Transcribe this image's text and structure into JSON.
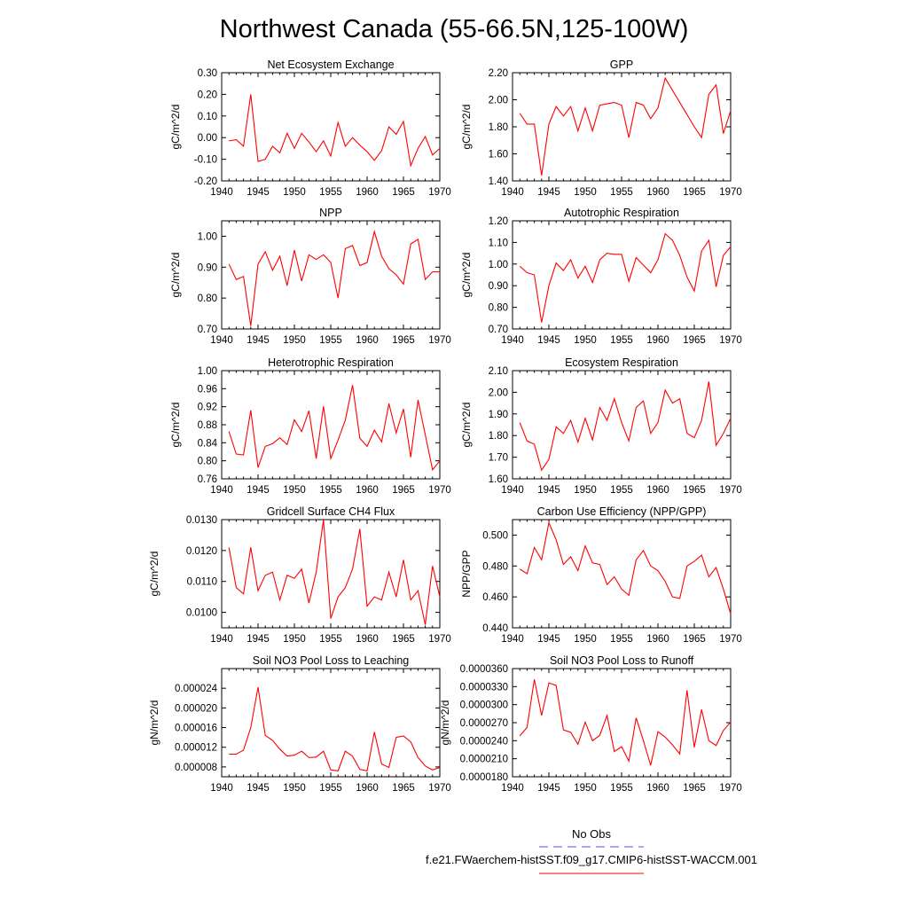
{
  "figure_title": "Northwest Canada (55-66.5N,125-100W)",
  "colors": {
    "model_line": "#ff0000",
    "obs_line": "#5555dd",
    "axes": "#000000"
  },
  "legend": {
    "obs_label": "No Obs",
    "model_label": "f.e21.FWaerchem-histSST.f09_g17.CMIP6-histSST-WACCM.001"
  },
  "chart_data": [
    {
      "type": "line",
      "title": "Net Ecosystem Exchange",
      "xlabel": "",
      "ylabel": "gC/m^2/d",
      "xlim": [
        1940,
        1970
      ],
      "ylim": [
        -0.2,
        0.3
      ],
      "xticks": [
        1940,
        1945,
        1950,
        1955,
        1960,
        1965,
        1970
      ],
      "xtick_labels": [
        "1940",
        "1945",
        "1950",
        "1955",
        "1960",
        "1965",
        "1970"
      ],
      "yticks": [
        -0.2,
        -0.1,
        0.0,
        0.1,
        0.2,
        0.3
      ],
      "ytick_labels": [
        "-0.20",
        "-0.10",
        "0.00",
        "0.10",
        "0.20",
        "0.30"
      ],
      "x": [
        1941,
        1942,
        1943,
        1944,
        1945,
        1946,
        1947,
        1948,
        1949,
        1950,
        1951,
        1952,
        1953,
        1954,
        1955,
        1956,
        1957,
        1958,
        1959,
        1960,
        1961,
        1962,
        1963,
        1964,
        1965,
        1966,
        1967,
        1968,
        1969,
        1970
      ],
      "series": [
        {
          "values": [
            -0.015,
            -0.01,
            -0.04,
            0.2,
            -0.11,
            -0.1,
            -0.04,
            -0.07,
            0.02,
            -0.05,
            0.02,
            -0.02,
            -0.065,
            -0.015,
            -0.085,
            0.07,
            -0.04,
            0.0,
            -0.035,
            -0.065,
            -0.105,
            -0.06,
            0.05,
            0.015,
            0.075,
            -0.13,
            -0.05,
            0.005,
            -0.08,
            -0.05
          ]
        }
      ],
      "grid": false
    },
    {
      "type": "line",
      "title": "GPP",
      "xlabel": "",
      "ylabel": "gC/m^2/d",
      "xlim": [
        1940,
        1970
      ],
      "ylim": [
        1.4,
        2.2
      ],
      "xticks": [
        1940,
        1945,
        1950,
        1955,
        1960,
        1965,
        1970
      ],
      "xtick_labels": [
        "1940",
        "1945",
        "1950",
        "1955",
        "1960",
        "1965",
        "1970"
      ],
      "yticks": [
        1.4,
        1.6,
        1.8,
        2.0,
        2.2
      ],
      "ytick_labels": [
        "1.40",
        "1.60",
        "1.80",
        "2.00",
        "2.20"
      ],
      "x": [
        1941,
        1942,
        1943,
        1944,
        1945,
        1946,
        1947,
        1948,
        1949,
        1950,
        1951,
        1952,
        1953,
        1954,
        1955,
        1956,
        1957,
        1958,
        1959,
        1960,
        1961,
        1962,
        1963,
        1964,
        1965,
        1966,
        1967,
        1968,
        1969,
        1970
      ],
      "series": [
        {
          "values": [
            1.9,
            1.82,
            1.82,
            1.44,
            1.82,
            1.95,
            1.88,
            1.95,
            1.77,
            1.94,
            1.77,
            1.96,
            1.97,
            1.98,
            1.96,
            1.72,
            1.98,
            1.96,
            1.86,
            1.94,
            2.16,
            2.07,
            1.98,
            1.89,
            1.8,
            1.72,
            2.04,
            2.11,
            1.75,
            1.92
          ]
        }
      ],
      "grid": false
    },
    {
      "type": "line",
      "title": "NPP",
      "xlabel": "",
      "ylabel": "gC/m^2/d",
      "xlim": [
        1940,
        1970
      ],
      "ylim": [
        0.7,
        1.05
      ],
      "xticks": [
        1940,
        1945,
        1950,
        1955,
        1960,
        1965,
        1970
      ],
      "xtick_labels": [
        "1940",
        "1945",
        "1950",
        "1955",
        "1960",
        "1965",
        "1970"
      ],
      "yticks": [
        0.7,
        0.8,
        0.9,
        1.0
      ],
      "ytick_labels": [
        "0.70",
        "0.80",
        "0.90",
        "1.00"
      ],
      "x": [
        1941,
        1942,
        1943,
        1944,
        1945,
        1946,
        1947,
        1948,
        1949,
        1950,
        1951,
        1952,
        1953,
        1954,
        1955,
        1956,
        1957,
        1958,
        1959,
        1960,
        1961,
        1962,
        1963,
        1964,
        1965,
        1966,
        1967,
        1968,
        1969,
        1970
      ],
      "series": [
        {
          "values": [
            0.91,
            0.86,
            0.87,
            0.71,
            0.91,
            0.95,
            0.89,
            0.935,
            0.84,
            0.955,
            0.855,
            0.94,
            0.925,
            0.94,
            0.915,
            0.8,
            0.96,
            0.97,
            0.905,
            0.915,
            1.015,
            0.935,
            0.895,
            0.875,
            0.845,
            0.975,
            0.99,
            0.86,
            0.885,
            0.885
          ]
        }
      ],
      "grid": false
    },
    {
      "type": "line",
      "title": "Autotrophic Respiration",
      "xlabel": "",
      "ylabel": "gC/m^2/d",
      "xlim": [
        1940,
        1970
      ],
      "ylim": [
        0.7,
        1.2
      ],
      "xticks": [
        1940,
        1945,
        1950,
        1955,
        1960,
        1965,
        1970
      ],
      "xtick_labels": [
        "1940",
        "1945",
        "1950",
        "1955",
        "1960",
        "1965",
        "1970"
      ],
      "yticks": [
        0.7,
        0.8,
        0.9,
        1.0,
        1.1,
        1.2
      ],
      "ytick_labels": [
        "0.70",
        "0.80",
        "0.90",
        "1.00",
        "1.10",
        "1.20"
      ],
      "x": [
        1941,
        1942,
        1943,
        1944,
        1945,
        1946,
        1947,
        1948,
        1949,
        1950,
        1951,
        1952,
        1953,
        1954,
        1955,
        1956,
        1957,
        1958,
        1959,
        1960,
        1961,
        1962,
        1963,
        1964,
        1965,
        1966,
        1967,
        1968,
        1969,
        1970
      ],
      "series": [
        {
          "values": [
            0.99,
            0.96,
            0.95,
            0.73,
            0.9,
            1.005,
            0.97,
            1.02,
            0.935,
            0.99,
            0.915,
            1.02,
            1.05,
            1.045,
            1.045,
            0.92,
            1.03,
            0.995,
            0.96,
            1.02,
            1.14,
            1.11,
            1.04,
            0.94,
            0.875,
            1.06,
            1.11,
            0.895,
            1.04,
            1.08
          ]
        }
      ],
      "grid": false
    },
    {
      "type": "line",
      "title": "Heterotrophic Respiration",
      "xlabel": "",
      "ylabel": "gC/m^2/d",
      "xlim": [
        1940,
        1970
      ],
      "ylim": [
        0.76,
        1.0
      ],
      "xticks": [
        1940,
        1945,
        1950,
        1955,
        1960,
        1965,
        1970
      ],
      "xtick_labels": [
        "1940",
        "1945",
        "1950",
        "1955",
        "1960",
        "1965",
        "1970"
      ],
      "yticks": [
        0.76,
        0.8,
        0.84,
        0.88,
        0.92,
        0.96,
        1.0
      ],
      "ytick_labels": [
        "0.76",
        "0.80",
        "0.84",
        "0.88",
        "0.92",
        "0.96",
        "1.00"
      ],
      "x": [
        1941,
        1942,
        1943,
        1944,
        1945,
        1946,
        1947,
        1948,
        1949,
        1950,
        1951,
        1952,
        1953,
        1954,
        1955,
        1956,
        1957,
        1958,
        1959,
        1960,
        1961,
        1962,
        1963,
        1964,
        1965,
        1966,
        1967,
        1968,
        1969,
        1970
      ],
      "series": [
        {
          "values": [
            0.865,
            0.815,
            0.813,
            0.912,
            0.785,
            0.832,
            0.838,
            0.851,
            0.836,
            0.891,
            0.865,
            0.911,
            0.805,
            0.921,
            0.805,
            0.846,
            0.89,
            0.968,
            0.85,
            0.832,
            0.868,
            0.842,
            0.927,
            0.862,
            0.915,
            0.808,
            0.935,
            0.858,
            0.78,
            0.8
          ]
        }
      ],
      "grid": false
    },
    {
      "type": "line",
      "title": "Ecosystem Respiration",
      "xlabel": "",
      "ylabel": "gC/m^2/d",
      "xlim": [
        1940,
        1970
      ],
      "ylim": [
        1.6,
        2.1
      ],
      "xticks": [
        1940,
        1945,
        1950,
        1955,
        1960,
        1965,
        1970
      ],
      "xtick_labels": [
        "1940",
        "1945",
        "1950",
        "1955",
        "1960",
        "1965",
        "1970"
      ],
      "yticks": [
        1.6,
        1.7,
        1.8,
        1.9,
        2.0,
        2.1
      ],
      "ytick_labels": [
        "1.60",
        "1.70",
        "1.80",
        "1.90",
        "2.00",
        "2.10"
      ],
      "x": [
        1941,
        1942,
        1943,
        1944,
        1945,
        1946,
        1947,
        1948,
        1949,
        1950,
        1951,
        1952,
        1953,
        1954,
        1955,
        1956,
        1957,
        1958,
        1959,
        1960,
        1961,
        1962,
        1963,
        1964,
        1965,
        1966,
        1967,
        1968,
        1969,
        1970
      ],
      "series": [
        {
          "values": [
            1.86,
            1.775,
            1.76,
            1.64,
            1.69,
            1.84,
            1.81,
            1.87,
            1.77,
            1.88,
            1.78,
            1.93,
            1.87,
            1.97,
            1.86,
            1.775,
            1.93,
            1.96,
            1.81,
            1.86,
            2.01,
            1.95,
            1.97,
            1.81,
            1.79,
            1.87,
            2.05,
            1.755,
            1.81,
            1.88
          ]
        }
      ],
      "grid": false
    },
    {
      "type": "line",
      "title": "Gridcell Surface CH4 Flux",
      "xlabel": "",
      "ylabel": "gC/m^2/d",
      "xlim": [
        1940,
        1970
      ],
      "ylim": [
        0.0095,
        0.013
      ],
      "xticks": [
        1940,
        1945,
        1950,
        1955,
        1960,
        1965,
        1970
      ],
      "xtick_labels": [
        "1940",
        "1945",
        "1950",
        "1955",
        "1960",
        "1965",
        "1970"
      ],
      "yticks": [
        0.01,
        0.011,
        0.012,
        0.013
      ],
      "ytick_labels": [
        "0.0100",
        "0.0110",
        "0.0120",
        "0.0130"
      ],
      "x": [
        1941,
        1942,
        1943,
        1944,
        1945,
        1946,
        1947,
        1948,
        1949,
        1950,
        1951,
        1952,
        1953,
        1954,
        1955,
        1956,
        1957,
        1958,
        1959,
        1960,
        1961,
        1962,
        1963,
        1964,
        1965,
        1966,
        1967,
        1968,
        1969,
        1970
      ],
      "series": [
        {
          "values": [
            0.0121,
            0.0108,
            0.0106,
            0.0121,
            0.0107,
            0.0112,
            0.0113,
            0.0104,
            0.0112,
            0.0111,
            0.0114,
            0.0103,
            0.0113,
            0.013,
            0.0098,
            0.0105,
            0.0108,
            0.0114,
            0.0127,
            0.0102,
            0.0105,
            0.0104,
            0.0113,
            0.0105,
            0.0117,
            0.0104,
            0.0107,
            0.0096,
            0.0115,
            0.0105
          ]
        }
      ],
      "grid": false
    },
    {
      "type": "line",
      "title": "Carbon Use Efficiency (NPP/GPP)",
      "xlabel": "",
      "ylabel": "NPP/GPP",
      "xlim": [
        1940,
        1970
      ],
      "ylim": [
        0.44,
        0.51
      ],
      "xticks": [
        1940,
        1945,
        1950,
        1955,
        1960,
        1965,
        1970
      ],
      "xtick_labels": [
        "1940",
        "1945",
        "1950",
        "1955",
        "1960",
        "1965",
        "1970"
      ],
      "yticks": [
        0.44,
        0.46,
        0.48,
        0.5
      ],
      "ytick_labels": [
        "0.440",
        "0.460",
        "0.480",
        "0.500"
      ],
      "x": [
        1941,
        1942,
        1943,
        1944,
        1945,
        1946,
        1947,
        1948,
        1949,
        1950,
        1951,
        1952,
        1953,
        1954,
        1955,
        1956,
        1957,
        1958,
        1959,
        1960,
        1961,
        1962,
        1963,
        1964,
        1965,
        1966,
        1967,
        1968,
        1969,
        1970
      ],
      "series": [
        {
          "values": [
            0.478,
            0.475,
            0.492,
            0.484,
            0.508,
            0.497,
            0.481,
            0.486,
            0.477,
            0.493,
            0.482,
            0.481,
            0.468,
            0.473,
            0.465,
            0.461,
            0.484,
            0.49,
            0.48,
            0.477,
            0.47,
            0.46,
            0.459,
            0.48,
            0.483,
            0.487,
            0.473,
            0.479,
            0.465,
            0.449
          ]
        }
      ],
      "grid": false
    },
    {
      "type": "line",
      "title": "Soil NO3 Pool Loss to Leaching",
      "xlabel": "",
      "ylabel": "gN/m^2/d",
      "xlim": [
        1940,
        1970
      ],
      "ylim": [
        6e-06,
        2.8e-05
      ],
      "xticks": [
        1940,
        1945,
        1950,
        1955,
        1960,
        1965,
        1970
      ],
      "xtick_labels": [
        "1940",
        "1945",
        "1950",
        "1955",
        "1960",
        "1965",
        "1970"
      ],
      "yticks": [
        8e-06,
        1.2e-05,
        1.6e-05,
        2e-05,
        2.4e-05
      ],
      "ytick_labels": [
        "0.000008",
        "0.000012",
        "0.000016",
        "0.000020",
        "0.000024"
      ],
      "x": [
        1941,
        1942,
        1943,
        1944,
        1945,
        1946,
        1947,
        1948,
        1949,
        1950,
        1951,
        1952,
        1953,
        1954,
        1955,
        1956,
        1957,
        1958,
        1959,
        1960,
        1961,
        1962,
        1963,
        1964,
        1965,
        1966,
        1967,
        1968,
        1969,
        1970
      ],
      "series": [
        {
          "values": [
            1.06e-05,
            1.06e-05,
            1.14e-05,
            1.6e-05,
            2.42e-05,
            1.44e-05,
            1.34e-05,
            1.16e-05,
            1.02e-05,
            1.04e-05,
            1.12e-05,
            9.9e-06,
            1e-05,
            1.12e-05,
            7.4e-06,
            7.2e-06,
            1.12e-05,
            1.02e-05,
            7.5e-06,
            7.2e-06,
            1.51e-05,
            8.6e-06,
            7.9e-06,
            1.4e-05,
            1.43e-05,
            1.31e-05,
            9.9e-06,
            8.2e-06,
            7.4e-06,
            7.9e-06
          ]
        }
      ],
      "grid": false
    },
    {
      "type": "line",
      "title": "Soil NO3 Pool Loss to Runoff",
      "xlabel": "",
      "ylabel": "gN/m^2/d",
      "xlim": [
        1940,
        1970
      ],
      "ylim": [
        1.8e-05,
        3.6e-05
      ],
      "xticks": [
        1940,
        1945,
        1950,
        1955,
        1960,
        1965,
        1970
      ],
      "xtick_labels": [
        "1940",
        "1945",
        "1950",
        "1955",
        "1960",
        "1965",
        "1970"
      ],
      "yticks": [
        1.8e-05,
        2.1e-05,
        2.4e-05,
        2.7e-05,
        3e-05,
        3.3e-05,
        3.6e-05
      ],
      "ytick_labels": [
        "0.0000180",
        "0.0000210",
        "0.0000240",
        "0.0000270",
        "0.0000300",
        "0.0000330",
        "0.0000360"
      ],
      "x": [
        1941,
        1942,
        1943,
        1944,
        1945,
        1946,
        1947,
        1948,
        1949,
        1950,
        1951,
        1952,
        1953,
        1954,
        1955,
        1956,
        1957,
        1958,
        1959,
        1960,
        1961,
        1962,
        1963,
        1964,
        1965,
        1966,
        1967,
        1968,
        1969,
        1970
      ],
      "series": [
        {
          "values": [
            2.48e-05,
            2.62e-05,
            3.42e-05,
            2.82e-05,
            3.36e-05,
            3.32e-05,
            2.58e-05,
            2.54e-05,
            2.34e-05,
            2.71e-05,
            2.4e-05,
            2.49e-05,
            2.82e-05,
            2.22e-05,
            2.3e-05,
            2.06e-05,
            2.78e-05,
            2.4e-05,
            1.99e-05,
            2.55e-05,
            2.46e-05,
            2.33e-05,
            2.18e-05,
            3.24e-05,
            2.29e-05,
            2.92e-05,
            2.4e-05,
            2.32e-05,
            2.57e-05,
            2.71e-05
          ]
        }
      ],
      "grid": false
    }
  ]
}
